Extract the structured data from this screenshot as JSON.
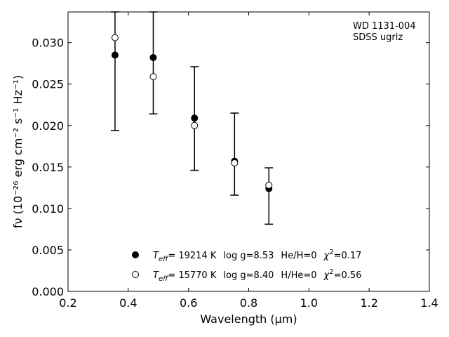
{
  "chart_data": {
    "type": "scatter",
    "xlabel": "Wavelength (μm)",
    "ylabel": "fν (10⁻²⁶ erg cm⁻² s⁻¹ Hz⁻¹)",
    "xlim": [
      0.2,
      1.4
    ],
    "ylim": [
      0.0,
      0.0337
    ],
    "xticks": [
      "0.2",
      "0.4",
      "0.6",
      "0.8",
      "1.0",
      "1.2",
      "1.4"
    ],
    "yticks": [
      "0.000",
      "0.005",
      "0.010",
      "0.015",
      "0.020",
      "0.025",
      "0.030"
    ],
    "annotation": [
      "WD 1131-004",
      "SDSS ugriz"
    ],
    "observed": {
      "x": [
        0.356,
        0.483,
        0.62,
        0.753,
        0.867
      ],
      "y": [
        0.0285,
        0.0282,
        0.0209,
        0.0157,
        0.0124
      ],
      "yerr_low": [
        0.0194,
        0.0214,
        0.0146,
        0.0116,
        0.0081
      ],
      "yerr_high": [
        0.0337,
        0.0337,
        0.0271,
        0.0215,
        0.0149
      ]
    },
    "series": [
      {
        "style": "filled",
        "x": [
          0.356,
          0.483,
          0.62,
          0.753,
          0.867
        ],
        "y": [
          0.0285,
          0.0282,
          0.0209,
          0.0157,
          0.0124
        ]
      },
      {
        "style": "open",
        "x": [
          0.356,
          0.483,
          0.62,
          0.753,
          0.867
        ],
        "y": [
          0.0306,
          0.0259,
          0.02,
          0.0155,
          0.0128
        ]
      }
    ],
    "legend": [
      {
        "teff_value": "= 19214 K",
        "logg": "log g=8.53",
        "comp": "He/H=0",
        "chi": "=0.17"
      },
      {
        "teff_value": "= 15770 K",
        "logg": "log g=8.40",
        "comp": "H/He=0",
        "chi": "=0.56"
      }
    ],
    "legend_placement": "lower-center",
    "grid": false
  }
}
